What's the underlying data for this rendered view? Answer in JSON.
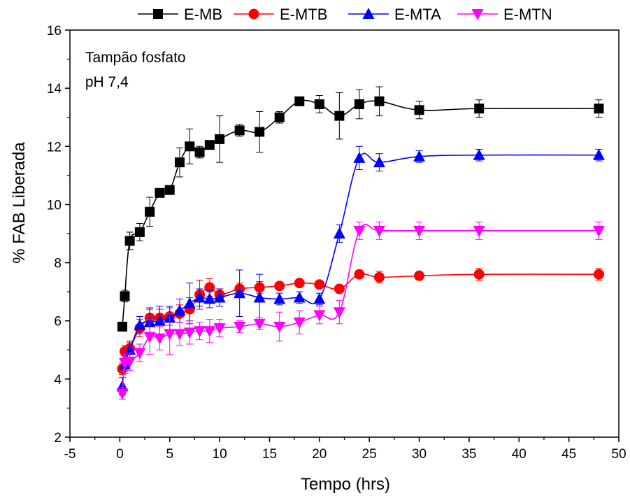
{
  "chart_data": {
    "type": "line",
    "title": "",
    "xlabel": "Tempo (hrs)",
    "ylabel": "% FAB Liberada",
    "xlim": [
      -5,
      50
    ],
    "ylim": [
      2,
      16
    ],
    "xticks": [
      -5,
      0,
      5,
      10,
      15,
      20,
      25,
      30,
      35,
      40,
      45,
      50
    ],
    "yticks": [
      2,
      4,
      6,
      8,
      10,
      12,
      14,
      16
    ],
    "grid": false,
    "legend_position": "top",
    "annotation": [
      "Tampão fosfato",
      " pH 7,4"
    ],
    "series": [
      {
        "name": "E-MB",
        "color": "#000000",
        "marker": "square",
        "x": [
          0.25,
          0.5,
          1,
          2,
          3,
          4,
          5,
          6,
          7,
          8,
          9,
          10,
          12,
          14,
          16,
          18,
          20,
          22,
          24,
          26,
          30,
          36,
          48
        ],
        "y": [
          5.8,
          6.85,
          8.75,
          9.05,
          9.75,
          10.4,
          10.5,
          11.45,
          12.0,
          11.8,
          12.05,
          12.25,
          12.55,
          12.5,
          13.0,
          13.55,
          13.45,
          13.05,
          13.45,
          13.55,
          13.25,
          13.3,
          13.3
        ],
        "err": [
          0.1,
          0.2,
          0.3,
          0.3,
          0.5,
          0.1,
          0.1,
          0.5,
          0.6,
          0.2,
          0.1,
          0.8,
          0.2,
          0.7,
          0.2,
          0.1,
          0.3,
          0.8,
          0.5,
          0.5,
          0.3,
          0.3,
          0.3
        ]
      },
      {
        "name": "E-MTB",
        "color": "#ff0000",
        "marker": "circle",
        "x": [
          0.25,
          0.5,
          1,
          2,
          3,
          4,
          5,
          6,
          7,
          8,
          9,
          10,
          12,
          14,
          16,
          18,
          20,
          22,
          24,
          26,
          30,
          36,
          48
        ],
        "y": [
          4.35,
          4.95,
          5.05,
          5.75,
          6.1,
          6.1,
          6.15,
          6.25,
          6.4,
          6.9,
          7.15,
          6.9,
          7.1,
          7.15,
          7.2,
          7.3,
          7.25,
          7.1,
          7.6,
          7.5,
          7.55,
          7.6,
          7.6
        ],
        "err": [
          0.2,
          0.2,
          0.2,
          0.3,
          0.3,
          0.3,
          0.3,
          0.3,
          0.4,
          0.5,
          0.3,
          0.1,
          0.2,
          0.2,
          0.1,
          0.1,
          0.1,
          0.1,
          0.1,
          0.2,
          0.1,
          0.2,
          0.2
        ]
      },
      {
        "name": "E-MTA",
        "color": "#0000ff",
        "marker": "triangle-up",
        "x": [
          0.25,
          0.5,
          1,
          2,
          3,
          4,
          5,
          6,
          7,
          8,
          9,
          10,
          12,
          14,
          16,
          18,
          20,
          22,
          24,
          26,
          30,
          36,
          48
        ],
        "y": [
          3.75,
          4.5,
          5.0,
          5.85,
          5.95,
          6.0,
          6.1,
          6.35,
          6.6,
          6.8,
          6.75,
          6.8,
          6.95,
          6.8,
          6.75,
          6.8,
          6.75,
          9.0,
          11.6,
          11.45,
          11.65,
          11.7,
          11.7
        ],
        "err": [
          0.3,
          0.3,
          0.3,
          0.3,
          0.5,
          0.5,
          0.4,
          0.4,
          0.7,
          0.3,
          0.3,
          0.3,
          0.8,
          0.8,
          0.2,
          0.2,
          0.2,
          0.3,
          0.4,
          0.3,
          0.2,
          0.2,
          0.2
        ]
      },
      {
        "name": "E-MTN",
        "color": "#ff00ff",
        "marker": "triangle-down",
        "x": [
          0.25,
          0.5,
          1,
          2,
          3,
          4,
          5,
          6,
          7,
          8,
          9,
          10,
          12,
          14,
          16,
          18,
          20,
          22,
          24,
          26,
          30,
          36,
          48
        ],
        "y": [
          3.5,
          4.55,
          4.6,
          4.9,
          5.45,
          5.4,
          5.55,
          5.55,
          5.6,
          5.65,
          5.65,
          5.75,
          5.8,
          5.9,
          5.8,
          5.95,
          6.2,
          6.3,
          9.1,
          9.1,
          9.1,
          9.1,
          9.1
        ],
        "err": [
          0.2,
          0.3,
          0.3,
          0.3,
          0.6,
          0.4,
          0.7,
          0.4,
          0.4,
          0.3,
          0.4,
          0.3,
          0.2,
          0.2,
          0.5,
          0.4,
          0.3,
          0.4,
          0.3,
          0.3,
          0.3,
          0.3,
          0.3
        ]
      }
    ]
  }
}
